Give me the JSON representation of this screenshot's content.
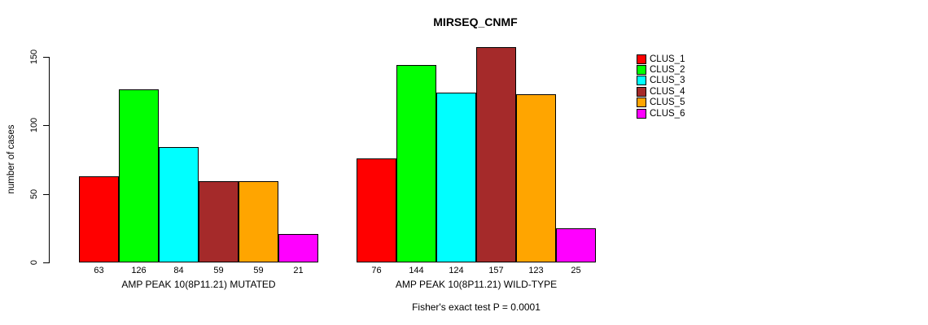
{
  "chart_data": {
    "type": "bar",
    "title": "MIRSEQ_CNMF",
    "ylabel": "number of cases",
    "ylim": [
      0,
      150
    ],
    "yticks": [
      0,
      50,
      100,
      150
    ],
    "grid": false,
    "legend_position": "right",
    "clusters": [
      {
        "name": "CLUS_1",
        "color": "#FF0000"
      },
      {
        "name": "CLUS_2",
        "color": "#00FF00"
      },
      {
        "name": "CLUS_3",
        "color": "#00FFFF"
      },
      {
        "name": "CLUS_4",
        "color": "#A52A2A"
      },
      {
        "name": "CLUS_5",
        "color": "#FFA500"
      },
      {
        "name": "CLUS_6",
        "color": "#FF00FF"
      }
    ],
    "groups": [
      {
        "label": "AMP PEAK 10(8P11.21) MUTATED",
        "categories": [
          "CLUS_1",
          "CLUS_2",
          "CLUS_3",
          "CLUS_4",
          "CLUS_5",
          "CLUS_6"
        ],
        "values": [
          63,
          126,
          84,
          59,
          59,
          21
        ]
      },
      {
        "label": "AMP PEAK 10(8P11.21) WILD-TYPE",
        "categories": [
          "CLUS_1",
          "CLUS_2",
          "CLUS_3",
          "CLUS_4",
          "CLUS_5",
          "CLUS_6"
        ],
        "values": [
          76,
          144,
          124,
          157,
          123,
          25
        ]
      }
    ],
    "annotation": "Fisher's exact test P = 0.0001"
  }
}
